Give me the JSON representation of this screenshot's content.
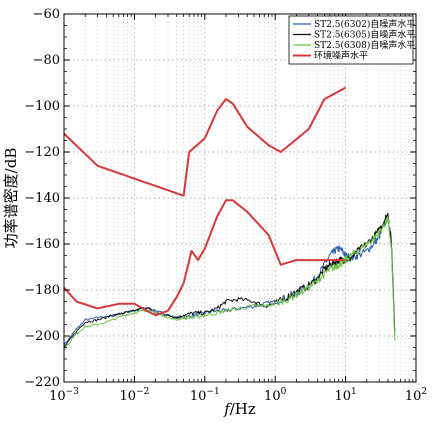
{
  "chart_data": {
    "type": "line",
    "title": "",
    "xlabel_italic": "f",
    "xlabel_rest": "/Hz",
    "ylabel": "功率谱密度/dB",
    "x_scale": "log",
    "xlim": [
      0.001,
      100
    ],
    "ylim": [
      -220,
      -60
    ],
    "x_ticks": [
      {
        "value": 0.001,
        "base": "10",
        "exp": "−3"
      },
      {
        "value": 0.01,
        "base": "10",
        "exp": "−2"
      },
      {
        "value": 0.1,
        "base": "10",
        "exp": "−1"
      },
      {
        "value": 1,
        "base": "10",
        "exp": "0"
      },
      {
        "value": 10,
        "base": "10",
        "exp": "1"
      },
      {
        "value": 100,
        "base": "10",
        "exp": "2"
      }
    ],
    "y_ticks": [
      {
        "value": -60,
        "label": "−60"
      },
      {
        "value": -80,
        "label": "−80"
      },
      {
        "value": -100,
        "label": "−100"
      },
      {
        "value": -120,
        "label": "−120"
      },
      {
        "value": -140,
        "label": "−140"
      },
      {
        "value": -160,
        "label": "−160"
      },
      {
        "value": -180,
        "label": "−180"
      },
      {
        "value": -200,
        "label": "−200"
      },
      {
        "value": -220,
        "label": "−220"
      }
    ],
    "grid": true,
    "legend_position": "top-right",
    "series": [
      {
        "name": "ST2.5(6302)自噪声水平",
        "color": "#2e5fb0",
        "x": [
          0.001,
          0.0015,
          0.002,
          0.003,
          0.005,
          0.007,
          0.01,
          0.013,
          0.016,
          0.02,
          0.025,
          0.03,
          0.04,
          0.05,
          0.07,
          0.1,
          0.15,
          0.2,
          0.3,
          0.5,
          0.7,
          1.0,
          1.5,
          2,
          3,
          4,
          5,
          6,
          7,
          8,
          9,
          10,
          12,
          15,
          20,
          25,
          30,
          35,
          40,
          45,
          50
        ],
        "y": [
          -204,
          -197,
          -193,
          -192,
          -191,
          -190,
          -189,
          -188,
          -188,
          -189,
          -190,
          -191,
          -192,
          -192,
          -191,
          -190,
          -189,
          -189,
          -188,
          -187,
          -186,
          -185,
          -183,
          -181,
          -178,
          -174,
          -169,
          -165,
          -163,
          -162,
          -163,
          -165,
          -166,
          -165,
          -163,
          -160,
          -157,
          -152,
          -148,
          -162,
          -200
        ]
      },
      {
        "name": "ST2.5(6305)自噪声水平",
        "color": "#111111",
        "x": [
          0.001,
          0.0015,
          0.002,
          0.003,
          0.005,
          0.007,
          0.01,
          0.013,
          0.016,
          0.02,
          0.025,
          0.03,
          0.04,
          0.05,
          0.07,
          0.1,
          0.15,
          0.2,
          0.3,
          0.5,
          0.7,
          1.0,
          1.5,
          2,
          3,
          4,
          5,
          6,
          7,
          8,
          9,
          10,
          12,
          15,
          20,
          25,
          30,
          35,
          40,
          45,
          50
        ],
        "y": [
          -205,
          -198,
          -194,
          -193,
          -191,
          -190,
          -189,
          -188,
          -188,
          -190,
          -191,
          -191,
          -192,
          -191,
          -190,
          -190,
          -188,
          -185,
          -184,
          -185,
          -187,
          -186,
          -183,
          -181,
          -178,
          -175,
          -171,
          -169,
          -168,
          -167,
          -167,
          -167,
          -166,
          -163,
          -160,
          -157,
          -154,
          -150,
          -147,
          -160,
          -198
        ]
      },
      {
        "name": "ST2.5(6308)自噪声水平",
        "color": "#6cc644",
        "x": [
          0.001,
          0.0015,
          0.002,
          0.003,
          0.005,
          0.007,
          0.01,
          0.013,
          0.016,
          0.02,
          0.025,
          0.03,
          0.04,
          0.05,
          0.07,
          0.1,
          0.15,
          0.2,
          0.3,
          0.5,
          0.7,
          1.0,
          1.5,
          2,
          3,
          4,
          5,
          6,
          7,
          8,
          9,
          10,
          12,
          15,
          20,
          25,
          30,
          35,
          40,
          45,
          50
        ],
        "y": [
          -206,
          -199,
          -196,
          -195,
          -193,
          -191,
          -190,
          -189,
          -189,
          -190,
          -191,
          -192,
          -193,
          -192,
          -192,
          -191,
          -190,
          -189,
          -188,
          -187,
          -187,
          -186,
          -184,
          -182,
          -179,
          -176,
          -173,
          -171,
          -170,
          -169,
          -168,
          -167,
          -165,
          -163,
          -160,
          -158,
          -155,
          -152,
          -149,
          -163,
          -202
        ]
      },
      {
        "name": "环境噪声水平",
        "color": "#d8383a",
        "x": [
          0.001,
          0.003,
          0.05,
          0.06,
          0.1,
          0.15,
          0.2,
          0.25,
          0.4,
          0.8,
          1.2,
          3,
          5,
          10
        ],
        "y": [
          -112,
          -126,
          -139,
          -120,
          -114,
          -102,
          -97,
          -99,
          -109,
          -117,
          -120,
          -110,
          -97,
          -92
        ]
      },
      {
        "name": "",
        "color": "#d8383a",
        "x": [
          0.001,
          0.0015,
          0.003,
          0.006,
          0.01,
          0.015,
          0.02,
          0.03,
          0.04,
          0.05,
          0.065,
          0.08,
          0.1,
          0.15,
          0.2,
          0.25,
          0.4,
          0.8,
          1.2,
          2,
          5,
          10
        ],
        "y": [
          -179,
          -185,
          -188,
          -186,
          -186,
          -189,
          -191,
          -189,
          -183,
          -177,
          -163,
          -167,
          -162,
          -148,
          -141,
          -141,
          -146,
          -156,
          -169,
          -167,
          -167,
          -167
        ]
      }
    ]
  }
}
